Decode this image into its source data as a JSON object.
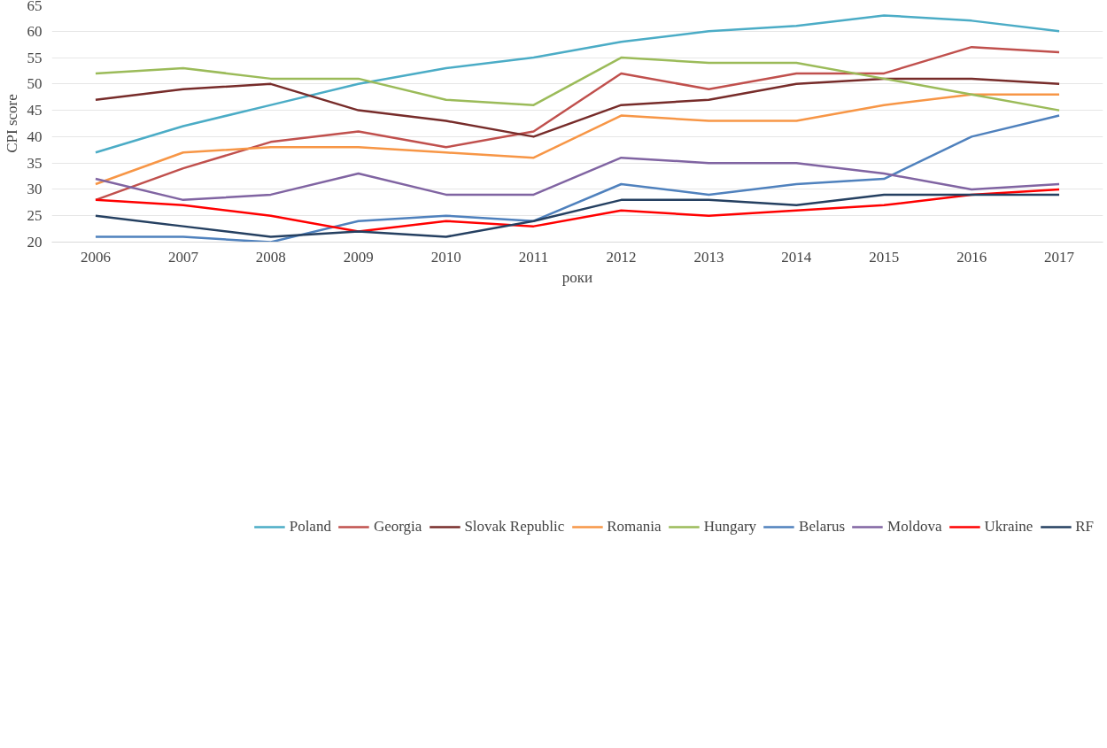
{
  "chart_data": {
    "type": "line",
    "xlabel": "роки",
    "ylabel": "CPI score",
    "categories": [
      "2006",
      "2007",
      "2008",
      "2009",
      "2010",
      "2011",
      "2012",
      "2013",
      "2014",
      "2015",
      "2016",
      "2017"
    ],
    "ylim": [
      20,
      65
    ],
    "yticks": [
      20,
      25,
      30,
      35,
      40,
      45,
      50,
      55,
      60,
      65
    ],
    "grid": "y",
    "legend": "bottom",
    "line_style": "solid",
    "series": [
      {
        "name": "Poland",
        "color": "#4bacc6",
        "values": [
          37,
          42,
          46,
          50,
          53,
          55,
          58,
          60,
          61,
          63,
          62,
          60
        ]
      },
      {
        "name": "Georgia",
        "color": "#c0504d",
        "values": [
          28,
          34,
          39,
          41,
          38,
          41,
          52,
          49,
          52,
          52,
          57,
          56
        ]
      },
      {
        "name": "Slovak Republic",
        "color": "#772c2a",
        "values": [
          47,
          49,
          50,
          45,
          43,
          40,
          46,
          47,
          50,
          51,
          51,
          50
        ]
      },
      {
        "name": "Romania",
        "color": "#f79646",
        "values": [
          31,
          37,
          38,
          38,
          37,
          36,
          44,
          43,
          43,
          46,
          48,
          48
        ]
      },
      {
        "name": "Hungary",
        "color": "#9bbb59",
        "values": [
          52,
          53,
          51,
          51,
          47,
          46,
          55,
          54,
          54,
          51,
          48,
          45
        ]
      },
      {
        "name": "Belarus",
        "color": "#4f81bd",
        "values": [
          21,
          21,
          20,
          24,
          25,
          24,
          31,
          29,
          31,
          32,
          40,
          44
        ]
      },
      {
        "name": "Moldova",
        "color": "#8064a2",
        "values": [
          32,
          28,
          29,
          33,
          29,
          29,
          36,
          35,
          35,
          33,
          30,
          31
        ]
      },
      {
        "name": "Ukraine",
        "color": "#ff0000",
        "values": [
          28,
          27,
          25,
          22,
          24,
          23,
          26,
          25,
          26,
          27,
          29,
          30
        ]
      },
      {
        "name": "RF",
        "color": "#254061",
        "values": [
          25,
          23,
          21,
          22,
          21,
          24,
          28,
          28,
          27,
          29,
          29,
          29
        ]
      }
    ]
  }
}
